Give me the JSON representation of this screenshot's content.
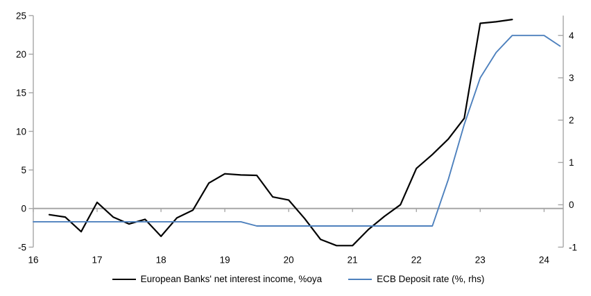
{
  "chart_data": {
    "type": "line",
    "title": "",
    "xlabel": "",
    "ylabel_left": "",
    "ylabel_right": "",
    "grid": "zero-line-only",
    "legend_position": "bottom",
    "x_axis": {
      "range": [
        16,
        24.3
      ],
      "tick_values": [
        16,
        17,
        18,
        19,
        20,
        21,
        22,
        23,
        24
      ],
      "tick_labels": [
        "16",
        "17",
        "18",
        "19",
        "20",
        "21",
        "22",
        "23",
        "24"
      ]
    },
    "y_axis_left": {
      "range": [
        -5,
        25
      ],
      "tick_values": [
        -5,
        0,
        5,
        10,
        15,
        20,
        25
      ],
      "tick_labels": [
        "-5",
        "0",
        "5",
        "10",
        "15",
        "20",
        "25"
      ]
    },
    "y_axis_right": {
      "range": [
        -1,
        4.47
      ],
      "tick_values": [
        -1,
        0,
        1,
        2,
        3,
        4
      ],
      "tick_labels": [
        "-1",
        "0",
        "1",
        "2",
        "3",
        "4"
      ]
    },
    "series": [
      {
        "name": "European Banks' net interest income, %oya",
        "axis": "left",
        "color": "#000000",
        "width": 2.2,
        "x": [
          16.25,
          16.5,
          16.75,
          17.0,
          17.25,
          17.5,
          17.75,
          18.0,
          18.25,
          18.5,
          18.75,
          19.0,
          19.25,
          19.5,
          19.75,
          20.0,
          20.25,
          20.5,
          20.75,
          21.0,
          21.25,
          21.5,
          21.75,
          22.0,
          22.25,
          22.5,
          22.75,
          23.0,
          23.25,
          23.5
        ],
        "values": [
          -0.8,
          -1.1,
          -3.0,
          0.8,
          -1.1,
          -2.0,
          -1.4,
          -3.6,
          -1.2,
          -0.2,
          3.3,
          4.5,
          4.35,
          4.3,
          1.5,
          1.1,
          -1.3,
          -4.0,
          -4.8,
          -4.8,
          -2.7,
          -1.0,
          0.5,
          5.2,
          7.0,
          9.0,
          11.7,
          24.0,
          24.2,
          24.5
        ]
      },
      {
        "name": "ECB Deposit rate (%, rhs)",
        "axis": "right",
        "color": "#4d80bd",
        "width": 1.9,
        "x": [
          16.0,
          16.25,
          16.5,
          16.75,
          17.0,
          17.25,
          17.5,
          17.75,
          18.0,
          18.25,
          18.5,
          18.75,
          19.0,
          19.25,
          19.5,
          19.75,
          20.0,
          20.25,
          20.5,
          20.75,
          21.0,
          21.25,
          21.5,
          21.75,
          22.0,
          22.25,
          22.5,
          22.75,
          23.0,
          23.25,
          23.5,
          23.75,
          24.0,
          24.25
        ],
        "values": [
          -0.4,
          -0.4,
          -0.4,
          -0.4,
          -0.4,
          -0.4,
          -0.4,
          -0.4,
          -0.4,
          -0.4,
          -0.4,
          -0.4,
          -0.4,
          -0.4,
          -0.5,
          -0.5,
          -0.5,
          -0.5,
          -0.5,
          -0.5,
          -0.5,
          -0.5,
          -0.5,
          -0.5,
          -0.5,
          -0.5,
          0.6,
          1.9,
          3.0,
          3.6,
          4.0,
          4.0,
          4.0,
          3.75
        ]
      }
    ]
  },
  "legend": {
    "items": [
      {
        "label": "European Banks' net interest income, %oya",
        "color": "#000000"
      },
      {
        "label": "ECB Deposit rate (%, rhs)",
        "color": "#4d80bd"
      }
    ]
  },
  "colors": {
    "background": "#ffffff",
    "axis": "#a6a6a6",
    "zero_line": "#a6a6a6",
    "text": "#000000",
    "series_black": "#000000",
    "series_blue": "#4d80bd"
  }
}
